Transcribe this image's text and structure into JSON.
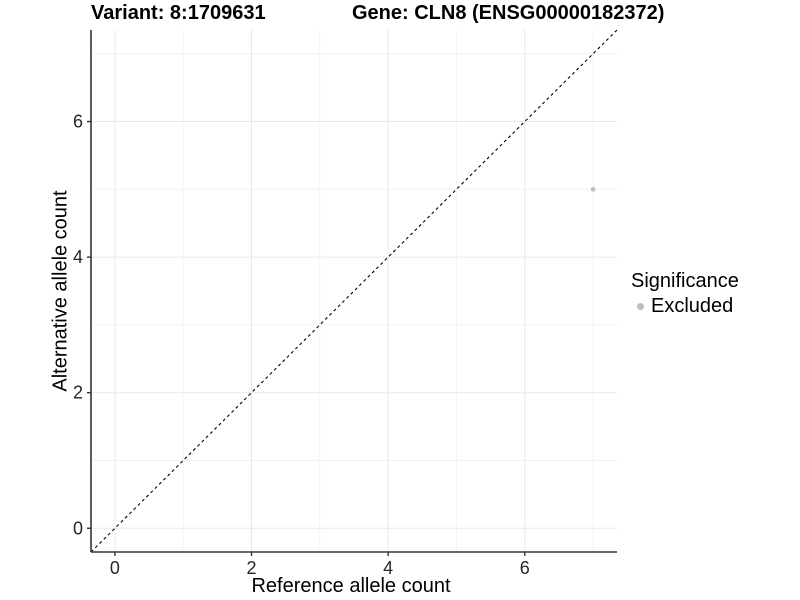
{
  "chart_data": {
    "type": "scatter",
    "title_left": "Variant: 8:1709631",
    "title_right": "Gene: CLN8 (ENSG00000182372)",
    "xlabel": "Reference allele count",
    "ylabel": "Alternative allele count",
    "xlim": [
      -0.35,
      7.35
    ],
    "ylim": [
      -0.35,
      7.35
    ],
    "x_major_ticks": [
      0,
      2,
      4,
      6
    ],
    "y_major_ticks": [
      0,
      2,
      4,
      6
    ],
    "x_minor_ticks": [
      1,
      3,
      5,
      7
    ],
    "y_minor_ticks": [
      1,
      3,
      5,
      7
    ],
    "grid": "on",
    "series": [
      {
        "name": "Excluded",
        "color": "#BDBDBD",
        "points": [
          {
            "x": 7,
            "y": 5
          }
        ]
      }
    ],
    "reference_line": {
      "type": "identity",
      "from": [
        -0.35,
        -0.35
      ],
      "to": [
        7.35,
        7.35
      ],
      "style": "dashed",
      "color": "#000000"
    },
    "legend": {
      "title": "Significance",
      "position": "right",
      "entries": [
        {
          "label": "Excluded",
          "color": "#BEBEBE"
        }
      ]
    },
    "colors": {
      "background": "#FFFFFF",
      "grid_major": "#E8E8E8",
      "grid_minor": "#F3F3F3",
      "axis_line": "#333333",
      "tick_text": "#262626"
    }
  }
}
